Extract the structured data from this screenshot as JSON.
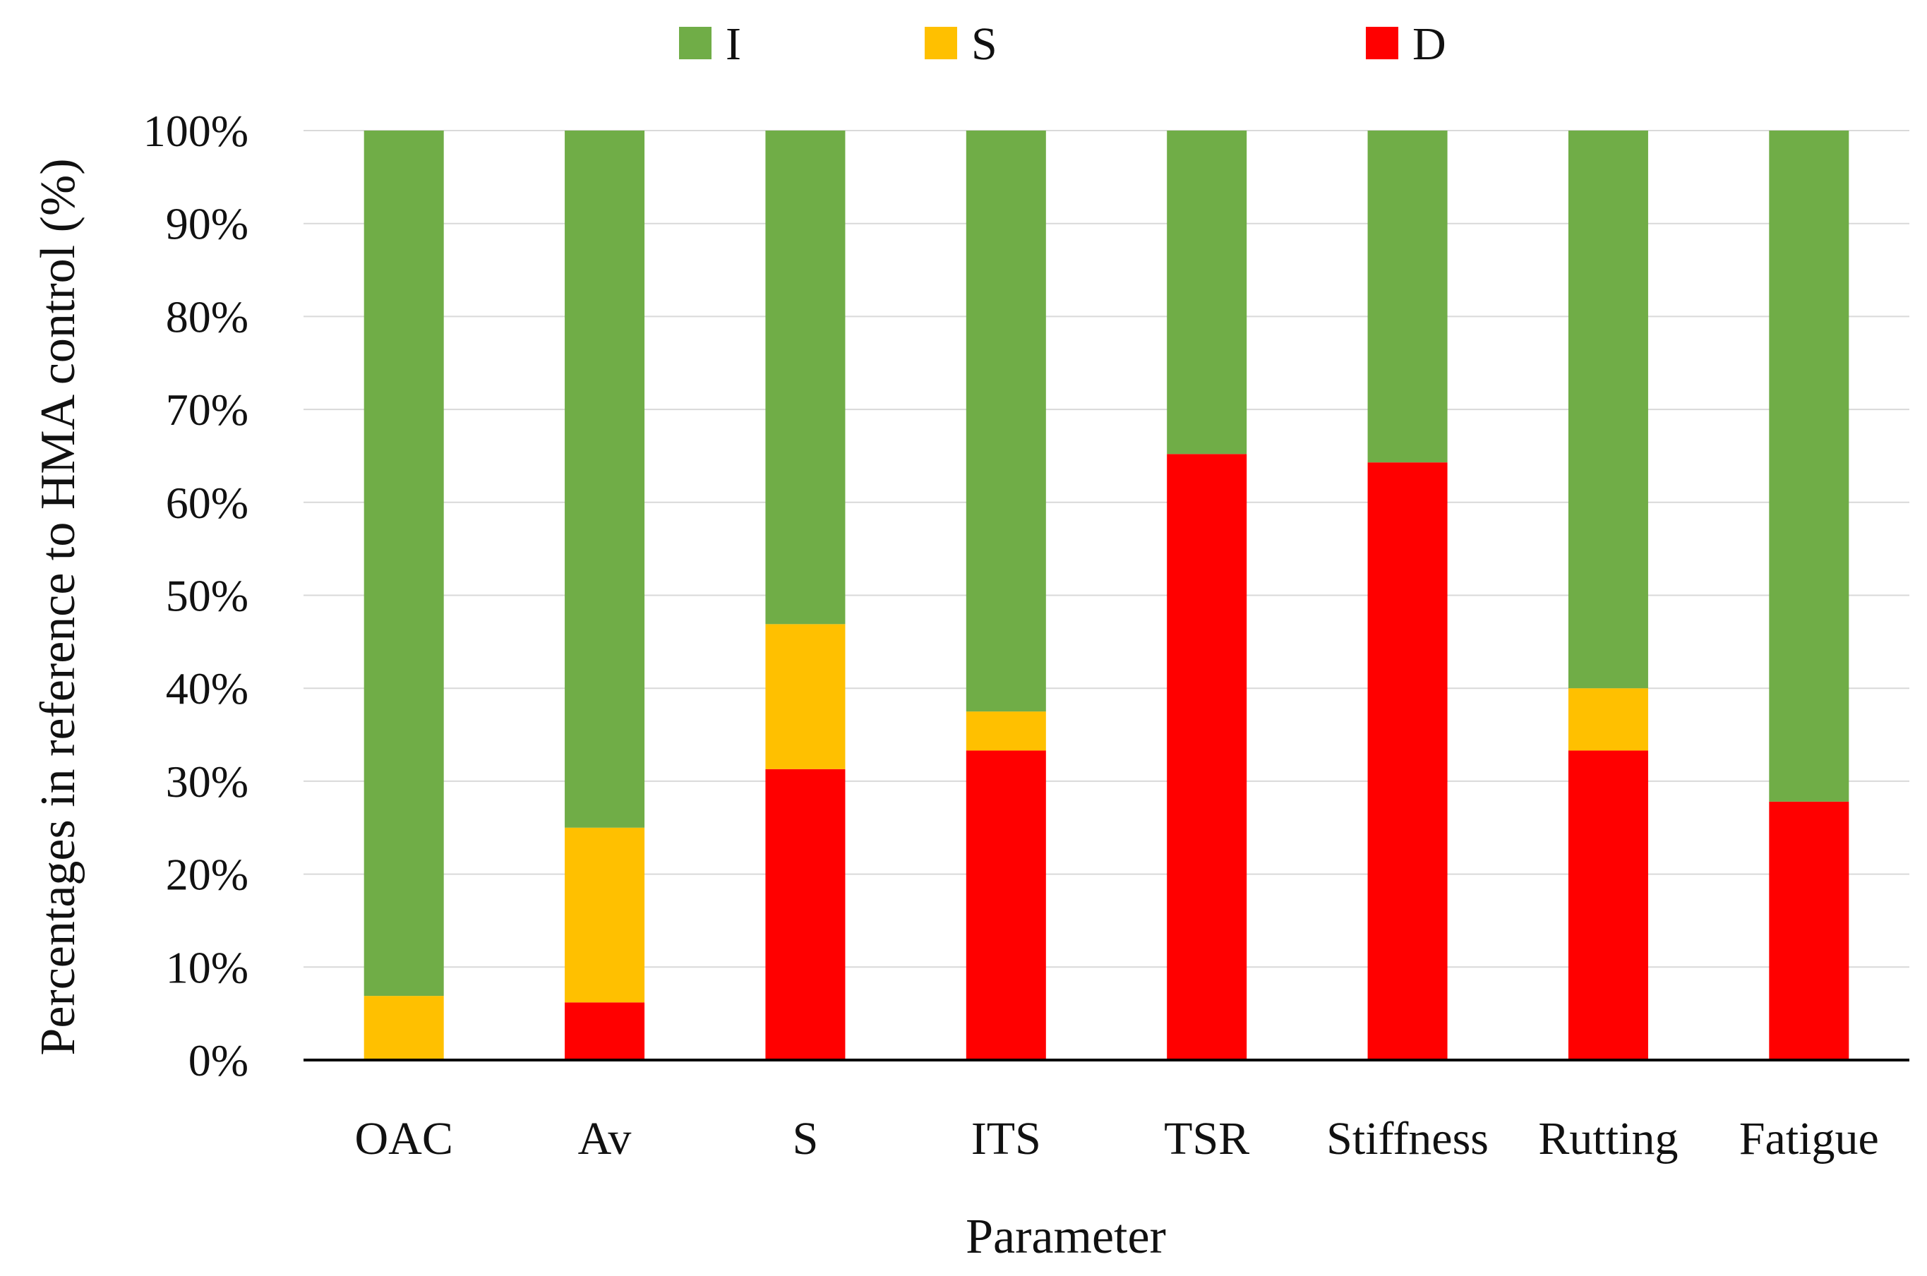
{
  "chart_data": {
    "type": "bar",
    "stacked": true,
    "percent": true,
    "title": "",
    "xlabel": "Parameter",
    "ylabel": "Percentages in reference to HMA control (%)",
    "ylim": [
      0,
      100
    ],
    "yticks": [
      "0%",
      "10%",
      "20%",
      "30%",
      "40%",
      "50%",
      "60%",
      "70%",
      "80%",
      "90%",
      "100%"
    ],
    "grid": true,
    "legend_position": "top",
    "categories": [
      "OAC",
      "Av",
      "S",
      "ITS",
      "TSR",
      "Stiffness",
      "Rutting",
      "Fatigue"
    ],
    "series": [
      {
        "name": "D",
        "color": "#ff0000",
        "values": [
          0,
          6.2,
          31.3,
          33.3,
          65.2,
          64.3,
          33.3,
          27.8
        ]
      },
      {
        "name": "S",
        "color": "#ffc000",
        "values": [
          6.9,
          18.8,
          15.6,
          4.2,
          0,
          0,
          6.7,
          0
        ]
      },
      {
        "name": "I",
        "color": "#70ad47",
        "values": [
          93.1,
          75.0,
          53.1,
          62.5,
          34.8,
          35.7,
          60.0,
          72.2
        ]
      }
    ],
    "legend_order": [
      "I",
      "S",
      "D"
    ]
  }
}
